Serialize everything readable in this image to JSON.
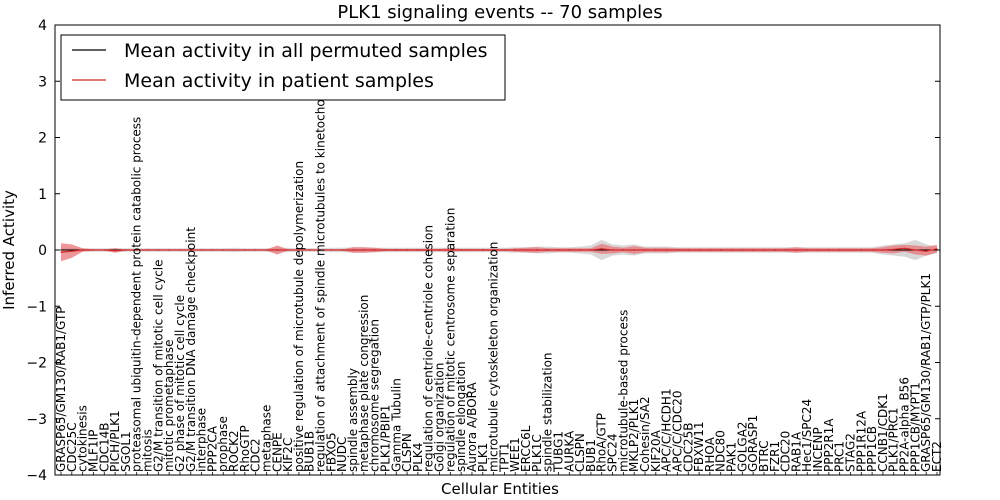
{
  "chart_data": {
    "type": "line",
    "title": "PLK1 signaling events -- 70 samples",
    "xlabel": "Cellular Entities",
    "ylabel": "Inferred Activity",
    "ylim": [
      -4,
      4
    ],
    "yticks": [
      -4,
      -3,
      -2,
      -1,
      0,
      1,
      2,
      3,
      4
    ],
    "ytick_labels": [
      "−4",
      "−3",
      "−2",
      "−1",
      "0",
      "1",
      "2",
      "3",
      "4"
    ],
    "legend_position": "top-left",
    "colors": {
      "permuted": "#000000",
      "patient": "#d62728",
      "patient_band": "#e8757a",
      "permuted_band": "#c8c8c8"
    },
    "categories": [
      "GRASP65/GM130/RAB1/GTP",
      "CDC25C",
      "cytokinesis",
      "MLF1IP",
      "CDC14B",
      "PICH/PLK1",
      "SGOL1",
      "proteasomal ubiquitin-dependent protein catabolic process",
      "mitosis",
      "G2/M transition of mitotic cell cycle",
      "mitotic prometaphase",
      "G2 phase of mitotic cell cycle",
      "G2/M transition DNA damage checkpoint",
      "interphase",
      "PPP2CA",
      "prophase",
      "ROCK2",
      "RhoGTP",
      "CDC2",
      "metaphase",
      "CENPE",
      "KIF2C",
      "positive regulation of microtubule depolymerization",
      "BUB1B",
      "regulation of attachment of spindle microtubules to kinetochore",
      "FBXO5",
      "NUDC",
      "spindle assembly",
      "metaphase plate congression",
      "chromosome segregation",
      "PLK1/PBIP1",
      "Gamma Tubulin",
      "CLSPN",
      "PLK4",
      "regulation of centriole-centriole cohesion",
      "Golgi organization",
      "regulation of mitotic centrosome separation",
      "spindle elongation",
      "Aurora A/BORA",
      "PLK1",
      "microtubule cytoskeleton organization",
      "TPT1",
      "WEE1",
      "ERCC6L",
      "PLK1C",
      "spindle stabilization",
      "TUBG1",
      "AURKA",
      "CLSPN",
      "BUB1",
      "RhoA/GTP",
      "SPC24",
      "microtubule-based process",
      "MKLP2/PLK1",
      "Cohesin/SA2",
      "KIF20A",
      "APC/C/HCDH1",
      "APC/C/CDC20",
      "CDC25B",
      "FBXW11",
      "RHOA",
      "NDC80",
      "PAK1",
      "GOLGA2",
      "GORASP1",
      "BTRC",
      "FZR1",
      "CDC20",
      "RAB1A",
      "Hec1/SPC24",
      "INCENP",
      "PPP2R1A",
      "PRC1",
      "STAG2",
      "PPP1R12A",
      "PPP1CB",
      "CCNB1/CDK1",
      "PLK1/PRC1",
      "PP2A-alpha B56",
      "PPP1CB/MYPT1",
      "GRASP65/GM130/RAB1/GTP/PLK1",
      "ECT2"
    ],
    "series": [
      {
        "name": "Mean activity in all permuted samples",
        "values": [
          0,
          0,
          0,
          0,
          0,
          0,
          0,
          0,
          0,
          0,
          0,
          0,
          0,
          0,
          0,
          0,
          0,
          0,
          0,
          0,
          0,
          0,
          0,
          0,
          0,
          0,
          0,
          0,
          0,
          0,
          0,
          0,
          0,
          0,
          0,
          0,
          0,
          0,
          0,
          0,
          0,
          0,
          0,
          0,
          0,
          0,
          0,
          0,
          0,
          0,
          0,
          0,
          0,
          0,
          0,
          0,
          0,
          0,
          0,
          0,
          0,
          0,
          0,
          0,
          0,
          0,
          0,
          0,
          0,
          0,
          0,
          0,
          0,
          0,
          0,
          0,
          0,
          0,
          0,
          0,
          0,
          0
        ],
        "spread": [
          0.05,
          0.04,
          0.03,
          0.03,
          0.03,
          0.03,
          0.03,
          0.03,
          0.03,
          0.03,
          0.03,
          0.03,
          0.03,
          0.03,
          0.03,
          0.03,
          0.04,
          0.03,
          0.03,
          0.03,
          0.04,
          0.04,
          0.03,
          0.03,
          0.03,
          0.04,
          0.04,
          0.05,
          0.05,
          0.04,
          0.04,
          0.04,
          0.04,
          0.04,
          0.04,
          0.04,
          0.04,
          0.04,
          0.04,
          0.04,
          0.04,
          0.04,
          0.05,
          0.05,
          0.06,
          0.06,
          0.05,
          0.05,
          0.06,
          0.08,
          0.18,
          0.1,
          0.08,
          0.1,
          0.06,
          0.06,
          0.06,
          0.05,
          0.05,
          0.05,
          0.05,
          0.05,
          0.05,
          0.05,
          0.05,
          0.05,
          0.05,
          0.05,
          0.05,
          0.05,
          0.05,
          0.05,
          0.05,
          0.05,
          0.05,
          0.05,
          0.08,
          0.1,
          0.12,
          0.18,
          0.1,
          0.05
        ]
      },
      {
        "name": "Mean activity in patient samples",
        "values": [
          -0.04,
          -0.02,
          0,
          0,
          0,
          -0.01,
          0,
          0,
          0,
          0,
          0,
          0,
          0,
          0,
          0,
          0,
          0,
          0,
          0,
          0,
          0,
          0,
          0,
          0,
          0,
          0,
          0,
          0,
          0,
          0,
          0,
          0,
          0,
          0,
          0,
          0,
          0,
          0,
          0,
          0,
          0,
          0,
          0,
          0,
          0,
          0,
          0,
          0,
          0,
          0,
          0.02,
          0,
          0,
          0,
          0,
          0,
          0,
          0,
          0,
          0,
          0,
          0,
          0,
          0,
          0,
          0,
          0,
          0,
          0,
          0,
          0,
          0,
          0,
          0,
          0,
          0,
          0,
          0.01,
          0.03,
          0,
          -0.02,
          0.02
        ],
        "spread": [
          0.16,
          0.12,
          0.03,
          0.01,
          0.01,
          0.04,
          0.01,
          0.01,
          0.01,
          0.01,
          0.01,
          0.01,
          0.01,
          0.01,
          0.01,
          0.01,
          0.01,
          0.01,
          0.01,
          0.01,
          0.08,
          0.01,
          0.01,
          0.01,
          0.01,
          0.01,
          0.01,
          0.05,
          0.05,
          0.04,
          0.02,
          0.02,
          0.02,
          0.02,
          0.02,
          0.02,
          0.03,
          0.02,
          0.02,
          0.02,
          0.02,
          0.02,
          0.03,
          0.04,
          0.05,
          0.03,
          0.03,
          0.03,
          0.03,
          0.03,
          0.09,
          0.06,
          0.04,
          0.07,
          0.04,
          0.04,
          0.04,
          0.03,
          0.03,
          0.03,
          0.03,
          0.03,
          0.03,
          0.03,
          0.03,
          0.03,
          0.03,
          0.03,
          0.05,
          0.03,
          0.03,
          0.03,
          0.03,
          0.03,
          0.03,
          0.03,
          0.05,
          0.07,
          0.06,
          0.08,
          0.08,
          0.07
        ]
      }
    ]
  }
}
